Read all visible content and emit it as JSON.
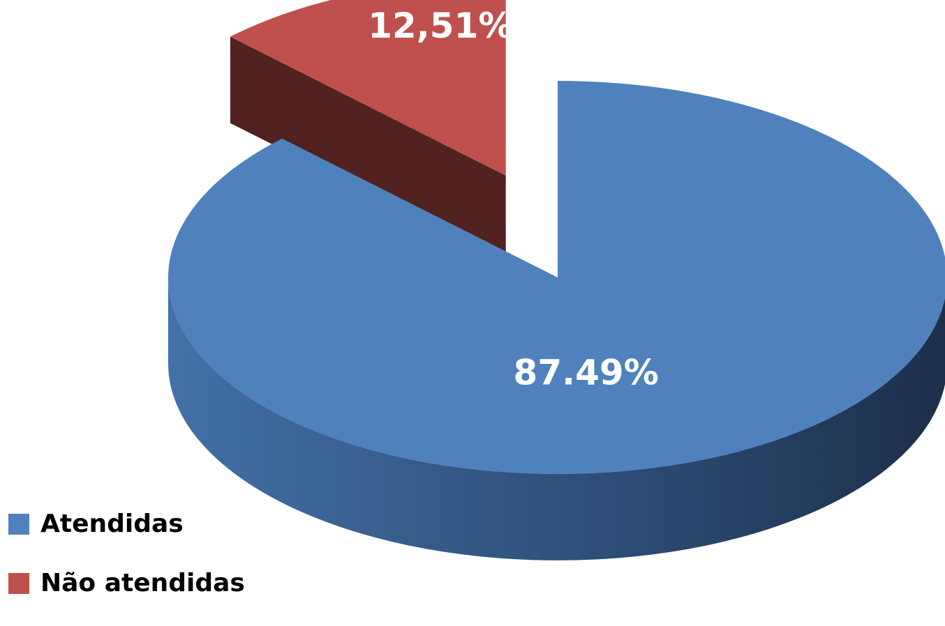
{
  "chart_data": {
    "type": "pie",
    "style": "3d-exploded",
    "categories": [
      "Atendidas",
      "Não atendidas"
    ],
    "values": [
      87.49,
      12.51
    ],
    "data_labels": [
      "87.49%",
      "12,51%"
    ],
    "colors": {
      "Atendidas": "#4f81bd",
      "Não atendidas": "#c0504d"
    },
    "exploded_slice": "Não atendidas",
    "legend_position": "bottom-left"
  }
}
